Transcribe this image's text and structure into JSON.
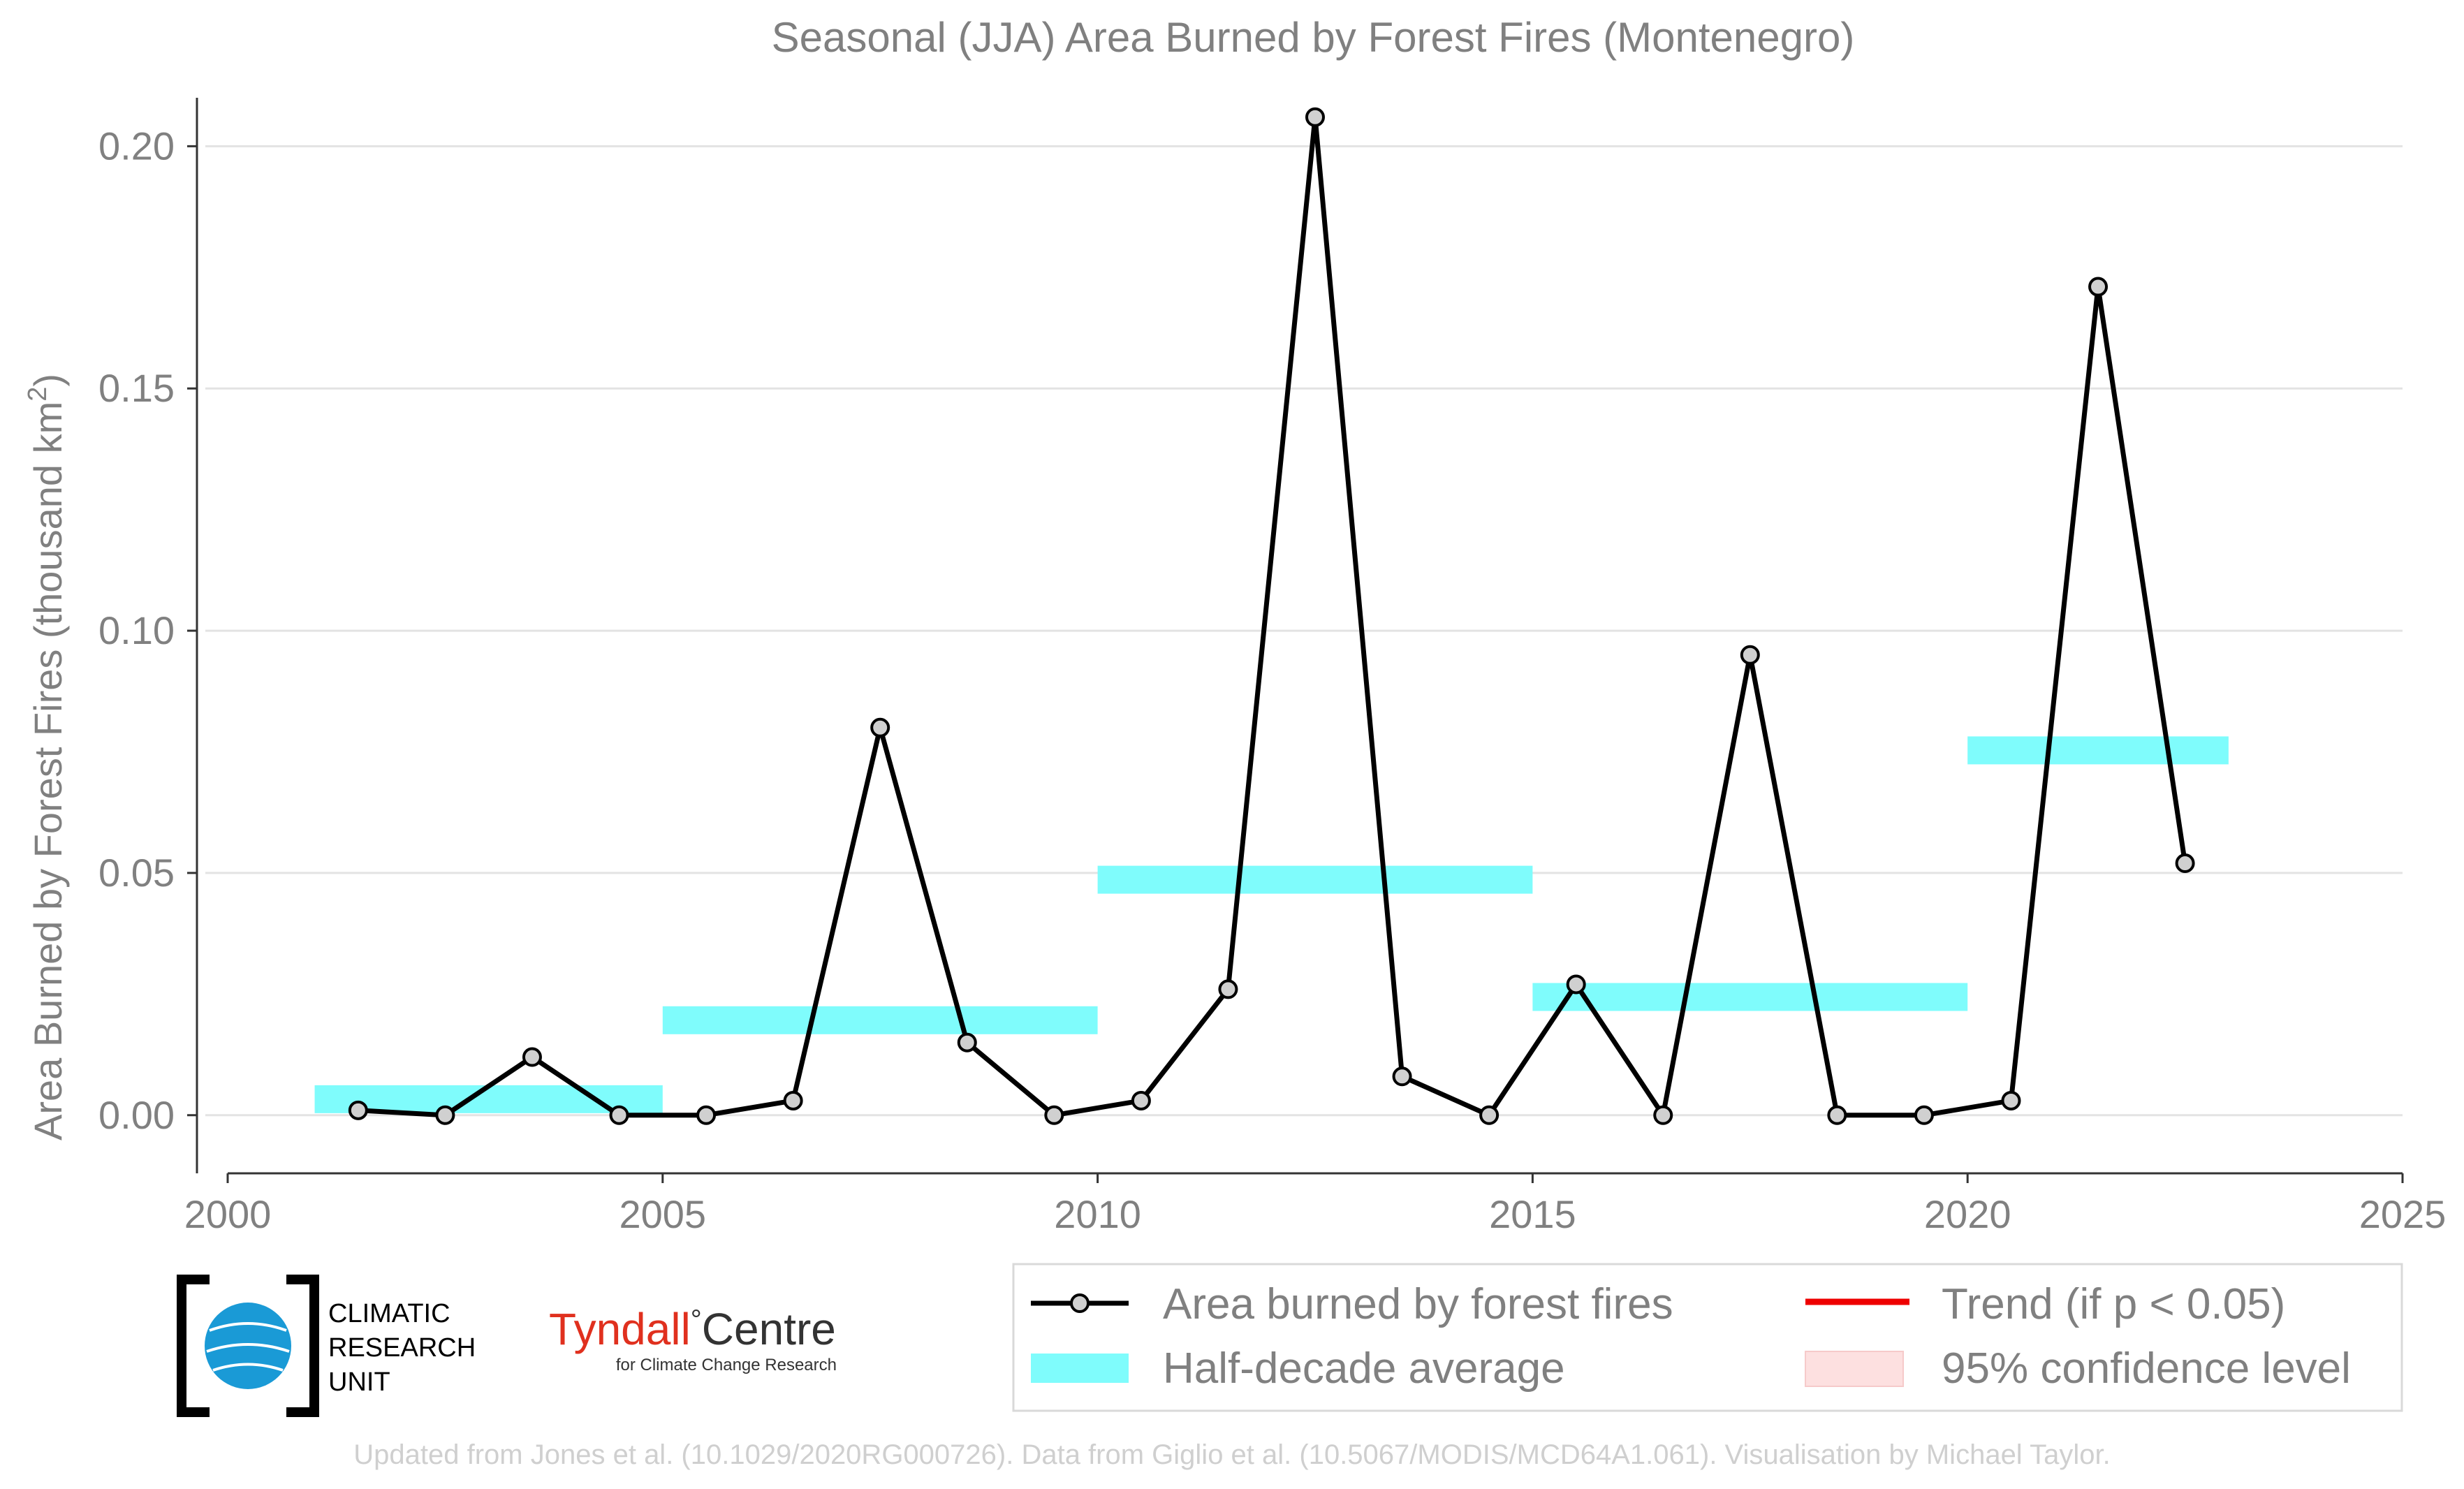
{
  "chart_data": {
    "type": "line",
    "title": "Seasonal (JJA) Area Burned by Forest Fires (Montenegro)",
    "ylabel_main": "Area Burned by Forest Fires (thousand km",
    "ylabel_sup": "2",
    "ylabel_end": ")",
    "xlabel": "",
    "xlim": [
      2000,
      2025
    ],
    "ylim": [
      -0.012,
      0.21
    ],
    "x_ticks": [
      "2000",
      "2005",
      "2010",
      "2015",
      "2020",
      "2025"
    ],
    "y_ticks": [
      "0.00",
      "0.05",
      "0.10",
      "0.15",
      "0.20"
    ],
    "grid": "horizontal",
    "series": [
      {
        "name": "Area burned by forest fires",
        "color": "#000000",
        "marker_fill": "#d0d0d0",
        "x": [
          2001.5,
          2002.5,
          2003.5,
          2004.5,
          2005.5,
          2006.5,
          2007.5,
          2008.5,
          2009.5,
          2010.5,
          2011.5,
          2012.5,
          2013.5,
          2014.5,
          2015.5,
          2016.5,
          2017.5,
          2018.5,
          2019.5,
          2020.5,
          2021.5,
          2022.5
        ],
        "values": [
          0.001,
          0.0,
          0.012,
          0.0,
          0.0,
          0.003,
          0.08,
          0.015,
          0.0,
          0.003,
          0.026,
          0.206,
          0.008,
          0.0,
          0.027,
          0.0,
          0.095,
          0.0,
          0.0,
          0.003,
          0.171,
          0.052
        ]
      }
    ],
    "half_decade_average": {
      "name": "Half-decade average",
      "color": "#7ffcfc",
      "segments": [
        {
          "x_start": 2001,
          "x_end": 2005,
          "value": 0.0033
        },
        {
          "x_start": 2005,
          "x_end": 2010,
          "value": 0.0196
        },
        {
          "x_start": 2010,
          "x_end": 2015,
          "value": 0.0486
        },
        {
          "x_start": 2015,
          "x_end": 2020,
          "value": 0.0244
        },
        {
          "x_start": 2020,
          "x_end": 2023,
          "value": 0.0753
        }
      ]
    },
    "legend": {
      "placement": "bottom-right",
      "items": [
        {
          "label": "Area burned by forest fires",
          "kind": "line-marker",
          "color": "#000000"
        },
        {
          "label": "Trend (if p < 0.05)",
          "kind": "line",
          "color": "#ee0000"
        },
        {
          "label": "Half-decade average",
          "kind": "band",
          "color": "#7ffcfc"
        },
        {
          "label": "95% confidence level",
          "kind": "band",
          "color": "#fde0e0"
        }
      ]
    }
  },
  "logos": {
    "cru_line1": "CLIMATIC",
    "cru_line2": "RESEARCH",
    "cru_line3": "UNIT",
    "tyndall_name": "Tyndall",
    "tyndall_centre": "Centre",
    "tyndall_degree": "°",
    "tyndall_sub": "for Climate Change Research"
  },
  "footer": "Updated from Jones et al. (10.1029/2020RG000726). Data from Giglio et al. (10.5067/MODIS/MCD64A1.061). Visualisation by Michael Taylor."
}
